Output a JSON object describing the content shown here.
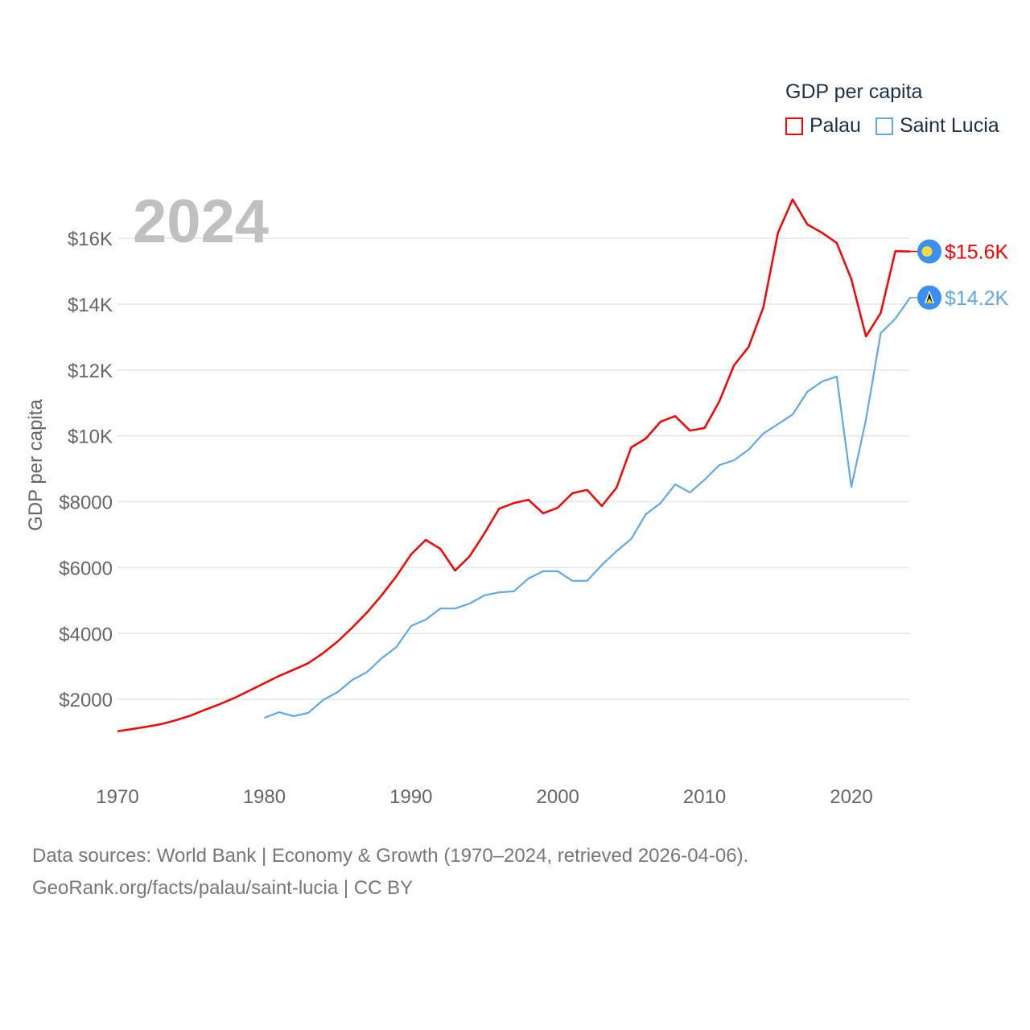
{
  "chart_data": {
    "type": "line",
    "title": "GDP per capita",
    "xlabel": "",
    "ylabel": "GDP per capita",
    "year_label": "2024",
    "xlim": [
      1970,
      2024
    ],
    "ylim": [
      0,
      17500
    ],
    "x_ticks": [
      1970,
      1980,
      1990,
      2000,
      2010,
      2020
    ],
    "y_ticks": [
      {
        "v": 2000,
        "label": "$2000"
      },
      {
        "v": 4000,
        "label": "$4000"
      },
      {
        "v": 6000,
        "label": "$6000"
      },
      {
        "v": 8000,
        "label": "$8000"
      },
      {
        "v": 10000,
        "label": "$10K"
      },
      {
        "v": 12000,
        "label": "$12K"
      },
      {
        "v": 14000,
        "label": "$14K"
      },
      {
        "v": 16000,
        "label": "$16K"
      }
    ],
    "grid": true,
    "legend_position": "top-right",
    "series": [
      {
        "name": "Palau",
        "color": "#ff0000",
        "end_label": "$15.6K",
        "flag_icon": "palau-flag-icon",
        "start": 1970,
        "values": [
          1030,
          1100,
          1170,
          1250,
          1370,
          1510,
          1690,
          1860,
          2050,
          2270,
          2490,
          2710,
          2900,
          3100,
          3400,
          3760,
          4180,
          4640,
          5160,
          5740,
          6400,
          6840,
          6570,
          5910,
          6350,
          7040,
          7790,
          7960,
          8060,
          7650,
          7820,
          8260,
          8360,
          7870,
          8430,
          9650,
          9920,
          10430,
          10600,
          10160,
          10240,
          11040,
          12140,
          12700,
          13900,
          16170,
          17180,
          16420,
          16170,
          15860,
          14760,
          13020,
          13730,
          15610,
          15600
        ]
      },
      {
        "name": "Saint Lucia",
        "color": "#5fa8ee",
        "end_label": "$14.2K",
        "flag_icon": "saint-lucia-flag-icon",
        "start": 1980,
        "values": [
          1440,
          1610,
          1490,
          1590,
          1980,
          2220,
          2590,
          2830,
          3250,
          3590,
          4230,
          4420,
          4760,
          4760,
          4910,
          5160,
          5250,
          5280,
          5670,
          5890,
          5890,
          5600,
          5600,
          6080,
          6500,
          6870,
          7620,
          7960,
          8530,
          8280,
          8670,
          9110,
          9260,
          9580,
          10070,
          10360,
          10650,
          11340,
          11650,
          11800,
          8450,
          10500,
          13120,
          13560,
          14200
        ]
      }
    ]
  },
  "legend": {
    "title": "GDP per capita",
    "items": [
      "Palau",
      "Saint Lucia"
    ]
  },
  "source": {
    "line1": "Data sources: World Bank | Economy & Growth (1970–2024, retrieved 2026-04-06).",
    "line2": "GeoRank.org/facts/palau/saint-lucia | CC BY"
  }
}
